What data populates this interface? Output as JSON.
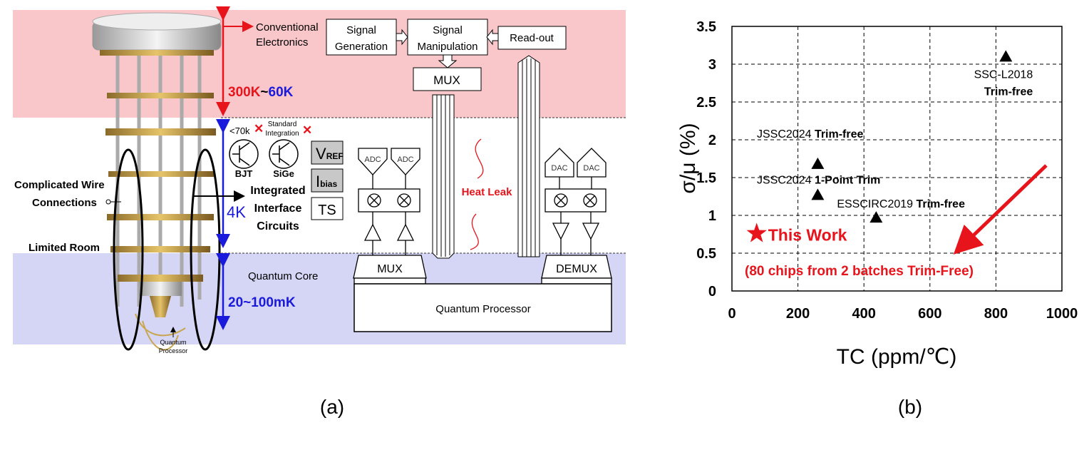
{
  "panel_a": {
    "caption": "(a)",
    "conventional_electronics": [
      "Conventional",
      "Electronics"
    ],
    "temp_room": {
      "hot": "300K",
      "sep": "~",
      "cold": "60K"
    },
    "temp_4k": "4K",
    "temp_mk": "20~100mK",
    "complicated_wire": [
      "Complicated Wire",
      "Connections"
    ],
    "limited_room": "Limited Room",
    "quantum_core": "Quantum Core",
    "quantum_processor_small": [
      "Quantum",
      "Processor"
    ],
    "lt70k": "<70k",
    "standard_integration": [
      "Standard",
      "Integration"
    ],
    "bjt": "BJT",
    "sige": "SiGe",
    "integrated_interface": [
      "Integrated",
      "Interface",
      "Circuits"
    ],
    "vref": {
      "main": "V",
      "sub": "REF"
    },
    "ibias": {
      "main": "I",
      "sub": "bias"
    },
    "ts": "TS",
    "signal_generation": [
      "Signal",
      "Generation"
    ],
    "signal_manipulation": [
      "Signal",
      "Manipulation"
    ],
    "readout": "Read-out",
    "mux_top": "MUX",
    "adc": "ADC",
    "dac": "DAC",
    "mux_bottom": "MUX",
    "demux": "DEMUX",
    "heat_leak": "Heat Leak",
    "quantum_processor": "Quantum Processor",
    "colors": {
      "room_band": "#f9c6c9",
      "core_band": "#d5d5f5",
      "red": "#e8141c",
      "blue": "#1a1adc"
    }
  },
  "panel_b": {
    "caption": "(b)"
  },
  "chart_data": {
    "type": "scatter",
    "xlabel": "TC (ppm/℃)",
    "ylabel": "σ/μ (%)",
    "xlim": [
      0,
      1000
    ],
    "ylim": [
      0,
      3.5
    ],
    "xticks": [
      "0",
      "200",
      "400",
      "600",
      "800",
      "1000"
    ],
    "yticks": [
      "0",
      "0.5",
      "1",
      "1.5",
      "2",
      "2.5",
      "3",
      "3.5"
    ],
    "grid": true,
    "points": [
      {
        "label": "SSC-L2018",
        "note": "Trim-free",
        "x": 830,
        "y": 3.1,
        "marker": "triangle",
        "color": "#000000"
      },
      {
        "label": "JSSC2024",
        "note": "Trim-free",
        "x": 260,
        "y": 1.68,
        "marker": "triangle",
        "color": "#000000"
      },
      {
        "label": "JSSC2024",
        "note": "1-Point Trim",
        "x": 260,
        "y": 1.27,
        "marker": "triangle",
        "color": "#000000"
      },
      {
        "label": "ESSCIRC2019",
        "note": "Trim-free",
        "x": 437,
        "y": 0.97,
        "marker": "triangle",
        "color": "#000000"
      },
      {
        "label": "This Work",
        "note": "(80 chips from 2 batches Trim-Free)",
        "x": 75,
        "y": 0.76,
        "marker": "star",
        "color": "#e8141c"
      }
    ]
  }
}
